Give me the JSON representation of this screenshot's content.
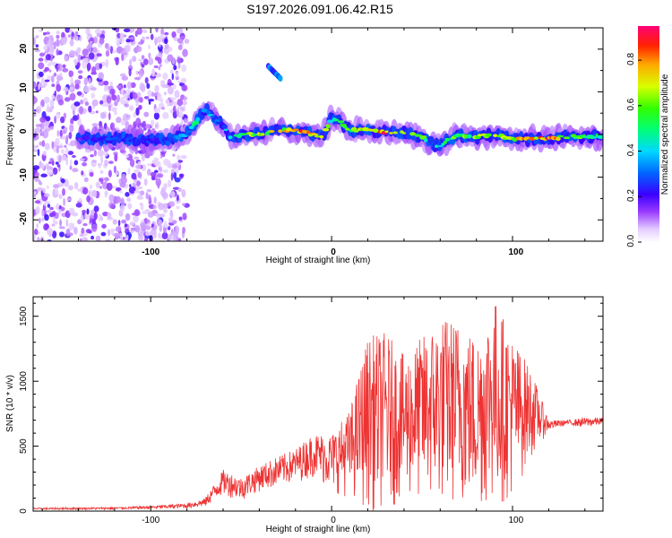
{
  "title": "S197.2026.091.06.42.R15",
  "spectrogram": {
    "xlabel": "Height of straight line (km)",
    "ylabel": "Frequency (Hz)",
    "x_ticks": [
      "-100",
      "0",
      "100"
    ],
    "y_ticks": [
      "20",
      "10",
      "0",
      "-10",
      "-20"
    ]
  },
  "colorbar": {
    "label": "Normalized spectral amplitude",
    "ticks": [
      "0.0",
      "0.2",
      "0.4",
      "0.6",
      "0.8"
    ]
  },
  "snr": {
    "xlabel": "Height of straight line (km)",
    "ylabel": "SNR (10 * v/v)",
    "x_ticks": [
      "-100",
      "0",
      "100"
    ],
    "y_ticks": [
      "0",
      "500",
      "1000",
      "1500"
    ]
  },
  "chart_data": [
    {
      "type": "heatmap",
      "title": "S197.2026.091.06.42.R15",
      "xlabel": "Height of straight line (km)",
      "ylabel": "Frequency (Hz)",
      "xlim": [
        -165,
        150
      ],
      "ylim": [
        -25,
        25
      ],
      "colorbar": {
        "label": "Normalized spectral amplitude",
        "range": [
          0.0,
          0.95
        ],
        "ticks": [
          0.0,
          0.2,
          0.4,
          0.6,
          0.8
        ]
      },
      "ridge": {
        "x": [
          -165,
          -140,
          -120,
          -100,
          -90,
          -80,
          -75,
          -70,
          -65,
          -60,
          -55,
          -50,
          -40,
          -30,
          -20,
          -15,
          -10,
          -5,
          0,
          5,
          10,
          20,
          30,
          40,
          50,
          55,
          60,
          65,
          70,
          80,
          90,
          100,
          110,
          120,
          130,
          140,
          150
        ],
        "y": [
          -1,
          -1,
          -1,
          -1.5,
          -1,
          0,
          3,
          6,
          4,
          2,
          -1,
          0,
          0,
          1,
          1,
          0.5,
          0,
          -0.5,
          4,
          3,
          1,
          1,
          0.5,
          0.5,
          -0.5,
          -2,
          -3,
          -1,
          0,
          -0.5,
          0,
          -1,
          -1,
          -1,
          -0.5,
          -0.5,
          -0.5
        ],
        "amplitude": [
          0.1,
          0.2,
          0.3,
          0.25,
          0.3,
          0.4,
          0.5,
          0.45,
          0.4,
          0.4,
          0.5,
          0.6,
          0.7,
          0.75,
          0.8,
          0.9,
          0.8,
          0.7,
          0.55,
          0.6,
          0.65,
          0.8,
          0.9,
          0.7,
          0.65,
          0.55,
          0.5,
          0.6,
          0.65,
          0.65,
          0.7,
          0.75,
          0.85,
          0.95,
          0.7,
          0.6,
          0.5
        ]
      },
      "echo": {
        "x": [
          -35,
          -28
        ],
        "y": [
          16,
          13
        ],
        "amplitude": 0.35
      }
    },
    {
      "type": "line",
      "xlabel": "Height of straight line (km)",
      "ylabel": "SNR (10 * v/v)",
      "xlim": [
        -165,
        150
      ],
      "ylim": [
        0,
        1650
      ],
      "series": [
        {
          "name": "SNR",
          "color": "#ee3333",
          "envelope_x": [
            -165,
            -120,
            -100,
            -80,
            -70,
            -60,
            -50,
            -40,
            -30,
            -20,
            -10,
            0,
            10,
            20,
            30,
            40,
            50,
            60,
            70,
            80,
            90,
            100,
            110,
            120,
            130,
            140,
            150
          ],
          "envelope_high": [
            25,
            30,
            40,
            60,
            100,
            320,
            260,
            350,
            420,
            480,
            600,
            600,
            780,
            1350,
            1380,
            1200,
            1350,
            1500,
            1480,
            1350,
            1650,
            1350,
            1100,
            700,
            700,
            720,
            720
          ],
          "envelope_low": [
            10,
            12,
            15,
            20,
            30,
            120,
            80,
            150,
            180,
            220,
            260,
            150,
            100,
            0,
            0,
            80,
            50,
            20,
            30,
            0,
            20,
            80,
            400,
            620,
            660,
            640,
            660
          ]
        }
      ]
    }
  ]
}
